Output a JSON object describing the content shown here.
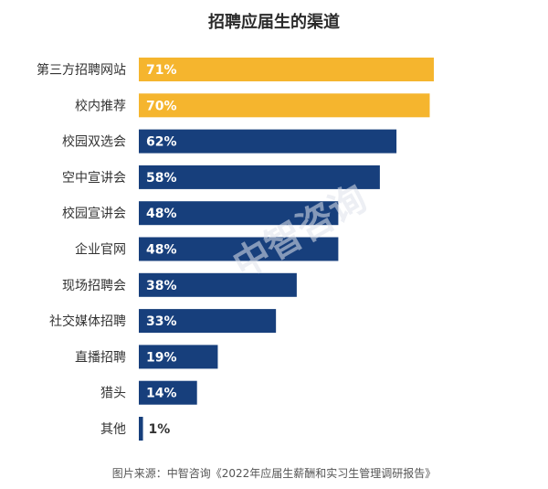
{
  "chart_data": {
    "type": "bar",
    "orientation": "horizontal",
    "title": "招聘应届生的渠道",
    "categories": [
      "第三方招聘网站",
      "校内推荐",
      "校园双选会",
      "空中宣讲会",
      "校园宣讲会",
      "企业官网",
      "现场招聘会",
      "社交媒体招聘",
      "直播招聘",
      "猎头",
      "其他"
    ],
    "values": [
      71,
      70,
      62,
      58,
      48,
      48,
      38,
      33,
      19,
      14,
      1
    ],
    "value_labels": [
      "71%",
      "70%",
      "62%",
      "58%",
      "48%",
      "48%",
      "38%",
      "33%",
      "19%",
      "14%",
      "1%"
    ],
    "highlight_count": 2,
    "colors": {
      "highlight": "#F5B52E",
      "normal": "#173F7C",
      "label_on_bar": "#FFFFFF",
      "label_off_bar": "#333333"
    },
    "grid": false,
    "legend": "none"
  },
  "watermark": "中智咨询",
  "source": "图片来源：中智咨询《2022年应届生薪酬和实习生管理调研报告》"
}
